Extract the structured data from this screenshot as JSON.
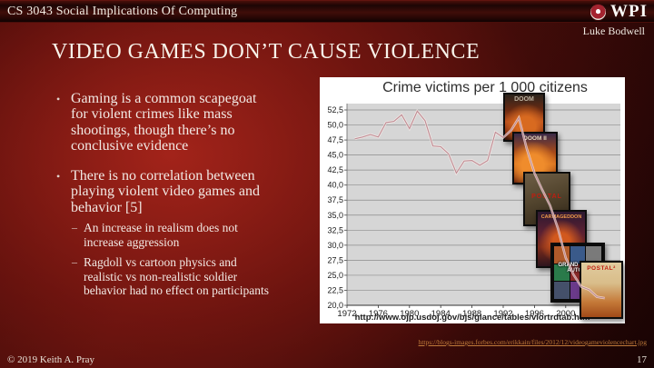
{
  "header": {
    "course_title": "CS 3043 Social Implications Of Computing",
    "logo_text": "WPI",
    "author": "Luke Bodwell"
  },
  "slide": {
    "title": "VIDEO GAMES DON’T CAUSE VIOLENCE"
  },
  "bullets": {
    "marker": "•",
    "sub_marker": "–",
    "b1": "Gaming is a common scapegoat\nfor violent crimes like mass\nshootings, though there’s no\nconclusive evidence",
    "b2": "There is no correlation between\nplaying violent video games and\nbehavior [5]",
    "b2_sub1": "An increase in realism does not\nincrease aggression",
    "b2_sub2": "Ragdoll vs cartoon physics and\nrealistic vs non-realistic soldier\nbehavior had no effect on participants"
  },
  "chart_data": {
    "type": "line",
    "title": "Crime victims per 1 000 citizens",
    "x": [
      1973,
      1974,
      1975,
      1976,
      1977,
      1978,
      1979,
      1980,
      1981,
      1982,
      1983,
      1984,
      1985,
      1986,
      1987,
      1988,
      1989,
      1990,
      1991,
      1992,
      1993,
      1994,
      1995,
      1996,
      1997,
      1998,
      1999,
      2000,
      2001,
      2002,
      2003,
      2004,
      2005
    ],
    "values": [
      47.7,
      48.0,
      48.4,
      48.0,
      50.4,
      50.6,
      51.7,
      49.4,
      52.3,
      50.7,
      46.5,
      46.4,
      45.2,
      42.0,
      44.0,
      44.1,
      43.3,
      44.1,
      48.8,
      47.9,
      49.1,
      51.2,
      46.1,
      42.0,
      39.2,
      36.6,
      32.8,
      27.9,
      25.1,
      23.1,
      22.6,
      21.4,
      21.2
    ],
    "ylim": [
      20.0,
      52.5
    ],
    "ytick_step": 2.5,
    "yticks": [
      "52,5",
      "50,0",
      "47,5",
      "45,0",
      "42,5",
      "40,0",
      "37,5",
      "35,0",
      "32,5",
      "30,0",
      "27,5",
      "25,0",
      "22,5",
      "20,0"
    ],
    "xticks": [
      1972,
      1976,
      1980,
      1984,
      1988,
      1992,
      1996,
      2000,
      2004
    ],
    "grid": true,
    "legend": false,
    "line_color": "#c08e96",
    "plot_bg": "#d6d6d6",
    "grid_color": "#8c8c8c",
    "source": "http://www.ojp.usdoj.gov/bjs/glance/tables/viortrdtab.htm"
  },
  "covers": [
    {
      "label": "DOOM"
    },
    {
      "label": "DOOM II"
    },
    {
      "label": "POSTAL"
    },
    {
      "label": "CARMAGEDDON"
    },
    {
      "label": "GRAND THEFT AUTO III"
    },
    {
      "label": "POSTAL²"
    }
  ],
  "footer": {
    "source_link": "https://blogs-images.forbes.com/erikkain/files/2012/12/videogameviolencechart.jpg",
    "copyright": "© 2019 Keith A. Pray",
    "page_number": "17"
  }
}
